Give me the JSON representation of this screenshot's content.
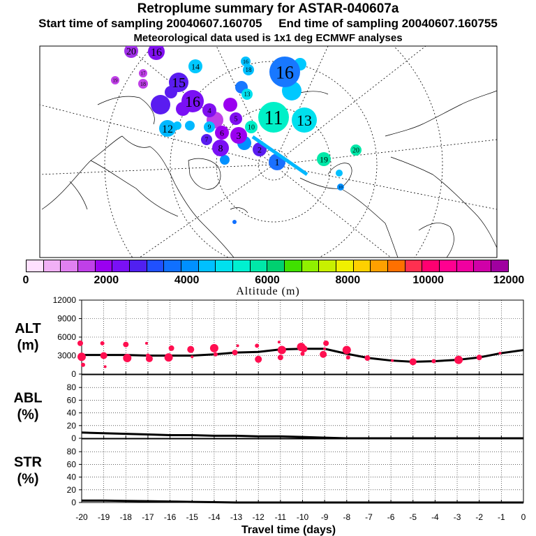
{
  "header": {
    "title": "Retroplume summary for ASTAR-040607a",
    "subtitle": "Start time of sampling 20040607.160705     End time of sampling 20040607.160755",
    "met_line": "Meteorological data used is 1x1 deg ECMWF analyses"
  },
  "colorbar": {
    "caption": "Altitude (m)",
    "tick_labels": [
      "0",
      "2000",
      "4000",
      "6000",
      "8000",
      "10000",
      "12000"
    ],
    "colors": [
      "#ffe0ff",
      "#f0b0f5",
      "#e080f0",
      "#c040e8",
      "#9a00f0",
      "#7a10f5",
      "#5020f0",
      "#2050ff",
      "#1070ff",
      "#0090ff",
      "#00c0ff",
      "#00e0ee",
      "#00f0d0",
      "#00e8a8",
      "#00d070",
      "#40e000",
      "#90f000",
      "#c8f000",
      "#f0f000",
      "#ffd000",
      "#ffa000",
      "#ff7000",
      "#ff3050",
      "#ff0070",
      "#ff0090",
      "#f000a0",
      "#d000a8",
      "#a000a0"
    ]
  },
  "map": {
    "labels": [
      {
        "text": "20",
        "color": "#a030e8"
      },
      {
        "text": "16",
        "color": "#8010f0"
      },
      {
        "text": "14",
        "color": "#00c8ff"
      },
      {
        "text": "16",
        "color": "#1878ff"
      },
      {
        "text": "15",
        "color": "#5a1cf0"
      },
      {
        "text": "16",
        "color": "#7a10f5"
      },
      {
        "text": "11",
        "color": "#00f0c8"
      },
      {
        "text": "13",
        "color": "#00e0ee"
      },
      {
        "text": "12",
        "color": "#00b8ff"
      },
      {
        "text": "8",
        "color": "#7a10f5"
      },
      {
        "text": "6",
        "color": "#9a00f0"
      },
      {
        "text": "3",
        "color": "#9a00f0"
      },
      {
        "text": "2",
        "color": "#5a1cf0"
      },
      {
        "text": "1",
        "color": "#1a70ff"
      },
      {
        "text": "19",
        "color": "#00e8a8"
      },
      {
        "text": "20",
        "color": "#00e8a8"
      },
      {
        "text": "18",
        "color": "#c040e8"
      },
      {
        "text": "17",
        "color": "#c040e8"
      },
      {
        "text": "19",
        "color": "#c040e8"
      },
      {
        "text": "10",
        "color": "#00f0c8"
      },
      {
        "text": "4",
        "color": "#8010f0"
      },
      {
        "text": "5",
        "color": "#8010f0"
      },
      {
        "text": "7",
        "color": "#5a1cf0"
      },
      {
        "text": "9",
        "color": "#00c0ff"
      },
      {
        "text": "18",
        "color": "#00c0ff"
      },
      {
        "text": "16",
        "color": "#00c0ff"
      },
      {
        "text": "13",
        "color": "#00e0ee"
      },
      {
        "text": "10",
        "color": "#0090ff"
      }
    ]
  },
  "chart_data": [
    {
      "type": "line",
      "name": "ALT",
      "ylabel": "ALT\n(m)",
      "xlabel": "Travel time (days)",
      "x": [
        0,
        -1,
        -2,
        -3,
        -4,
        -5,
        -6,
        -7,
        -8,
        -9,
        -10,
        -11,
        -12,
        -13,
        -14,
        -15,
        -16,
        -17,
        -18,
        -19,
        -20
      ],
      "x_tick_labels": [
        "-20",
        "-19",
        "-18",
        "-17",
        "-16",
        "-15",
        "-14",
        "-13",
        "-12",
        "-11",
        "-10",
        "-9",
        "-8",
        "-7",
        "-6",
        "-5",
        "-4",
        "-3",
        "-2",
        "-1",
        "0"
      ],
      "ylim": [
        0,
        12000
      ],
      "y_tick_labels": [
        "0",
        "3000",
        "6000",
        "9000",
        "12000"
      ],
      "series": [
        {
          "name": "mean altitude",
          "values": [
            3900,
            3400,
            2700,
            2300,
            2100,
            2000,
            2200,
            2600,
            3300,
            4100,
            4100,
            4000,
            3600,
            3500,
            3200,
            3000,
            3000,
            3000,
            3100,
            3100,
            3100
          ]
        },
        {
          "name": "cluster altitudes",
          "color": "#ff0f50",
          "points": [
            [
              -1,
              3400
            ],
            [
              -2,
              2700
            ],
            [
              -3,
              2300
            ],
            [
              -4,
              2100
            ],
            [
              -5,
              2000
            ],
            [
              -6,
              2200
            ],
            [
              -7,
              2600
            ],
            [
              -8,
              3900
            ],
            [
              -8,
              2700
            ],
            [
              -9,
              3200
            ],
            [
              -9,
              4100
            ],
            [
              -9,
              5000
            ],
            [
              -10,
              4400
            ],
            [
              -10,
              3300
            ],
            [
              -10,
              4100
            ],
            [
              -11,
              5200
            ],
            [
              -11,
              2700
            ],
            [
              -11,
              3900
            ],
            [
              -12,
              4600
            ],
            [
              -12,
              2400
            ],
            [
              -13,
              4600
            ],
            [
              -13,
              3500
            ],
            [
              -14,
              4200
            ],
            [
              -14,
              3200
            ],
            [
              -15,
              4000
            ],
            [
              -15,
              2800
            ],
            [
              -16,
              4200
            ],
            [
              -16,
              2700
            ],
            [
              -17,
              3000
            ],
            [
              -17,
              2500
            ],
            [
              -17,
              5000
            ],
            [
              -18,
              4800
            ],
            [
              -18,
              2600
            ],
            [
              -19,
              5000
            ],
            [
              -19,
              3000
            ],
            [
              -19,
              1200
            ],
            [
              -20,
              5000
            ],
            [
              -20,
              2800
            ],
            [
              -20,
              1500
            ]
          ]
        }
      ]
    },
    {
      "type": "line",
      "name": "ABL",
      "ylabel": "ABL\n(%)",
      "xlabel": "Travel time (days)",
      "x": [
        0,
        -1,
        -2,
        -3,
        -4,
        -5,
        -6,
        -7,
        -8,
        -9,
        -10,
        -11,
        -12,
        -13,
        -14,
        -15,
        -16,
        -17,
        -18,
        -19,
        -20
      ],
      "x_tick_labels": [
        "-20",
        "-19",
        "-18",
        "-17",
        "-16",
        "-15",
        "-14",
        "-13",
        "-12",
        "-11",
        "-10",
        "-9",
        "-8",
        "-7",
        "-6",
        "-5",
        "-4",
        "-3",
        "-2",
        "-1",
        "0"
      ],
      "ylim": [
        0,
        100
      ],
      "y_tick_labels": [
        "0",
        "20",
        "40",
        "60",
        "80"
      ],
      "series": [
        {
          "name": "ABL fraction",
          "values": [
            0,
            0,
            0,
            0,
            0,
            0,
            0,
            0,
            0,
            1,
            2,
            3,
            3,
            4,
            4,
            5,
            5,
            6,
            7,
            8,
            9
          ]
        }
      ]
    },
    {
      "type": "line",
      "name": "STR",
      "ylabel": "STR\n(%)",
      "xlabel": "Travel time (days)",
      "x": [
        0,
        -1,
        -2,
        -3,
        -4,
        -5,
        -6,
        -7,
        -8,
        -9,
        -10,
        -11,
        -12,
        -13,
        -14,
        -15,
        -16,
        -17,
        -18,
        -19,
        -20
      ],
      "x_tick_labels": [
        "-20",
        "-19",
        "-18",
        "-17",
        "-16",
        "-15",
        "-14",
        "-13",
        "-12",
        "-11",
        "-10",
        "-9",
        "-8",
        "-7",
        "-6",
        "-5",
        "-4",
        "-3",
        "-2",
        "-1",
        "0"
      ],
      "ylim": [
        0,
        100
      ],
      "y_tick_labels": [
        "0",
        "20",
        "40",
        "60",
        "80"
      ],
      "series": [
        {
          "name": "stratosphere fraction",
          "values": [
            0,
            0,
            0,
            0,
            0,
            0,
            0,
            0,
            0,
            0,
            0,
            0,
            0,
            0,
            0.5,
            1,
            1.5,
            2,
            2.5,
            3,
            3
          ]
        }
      ]
    }
  ]
}
